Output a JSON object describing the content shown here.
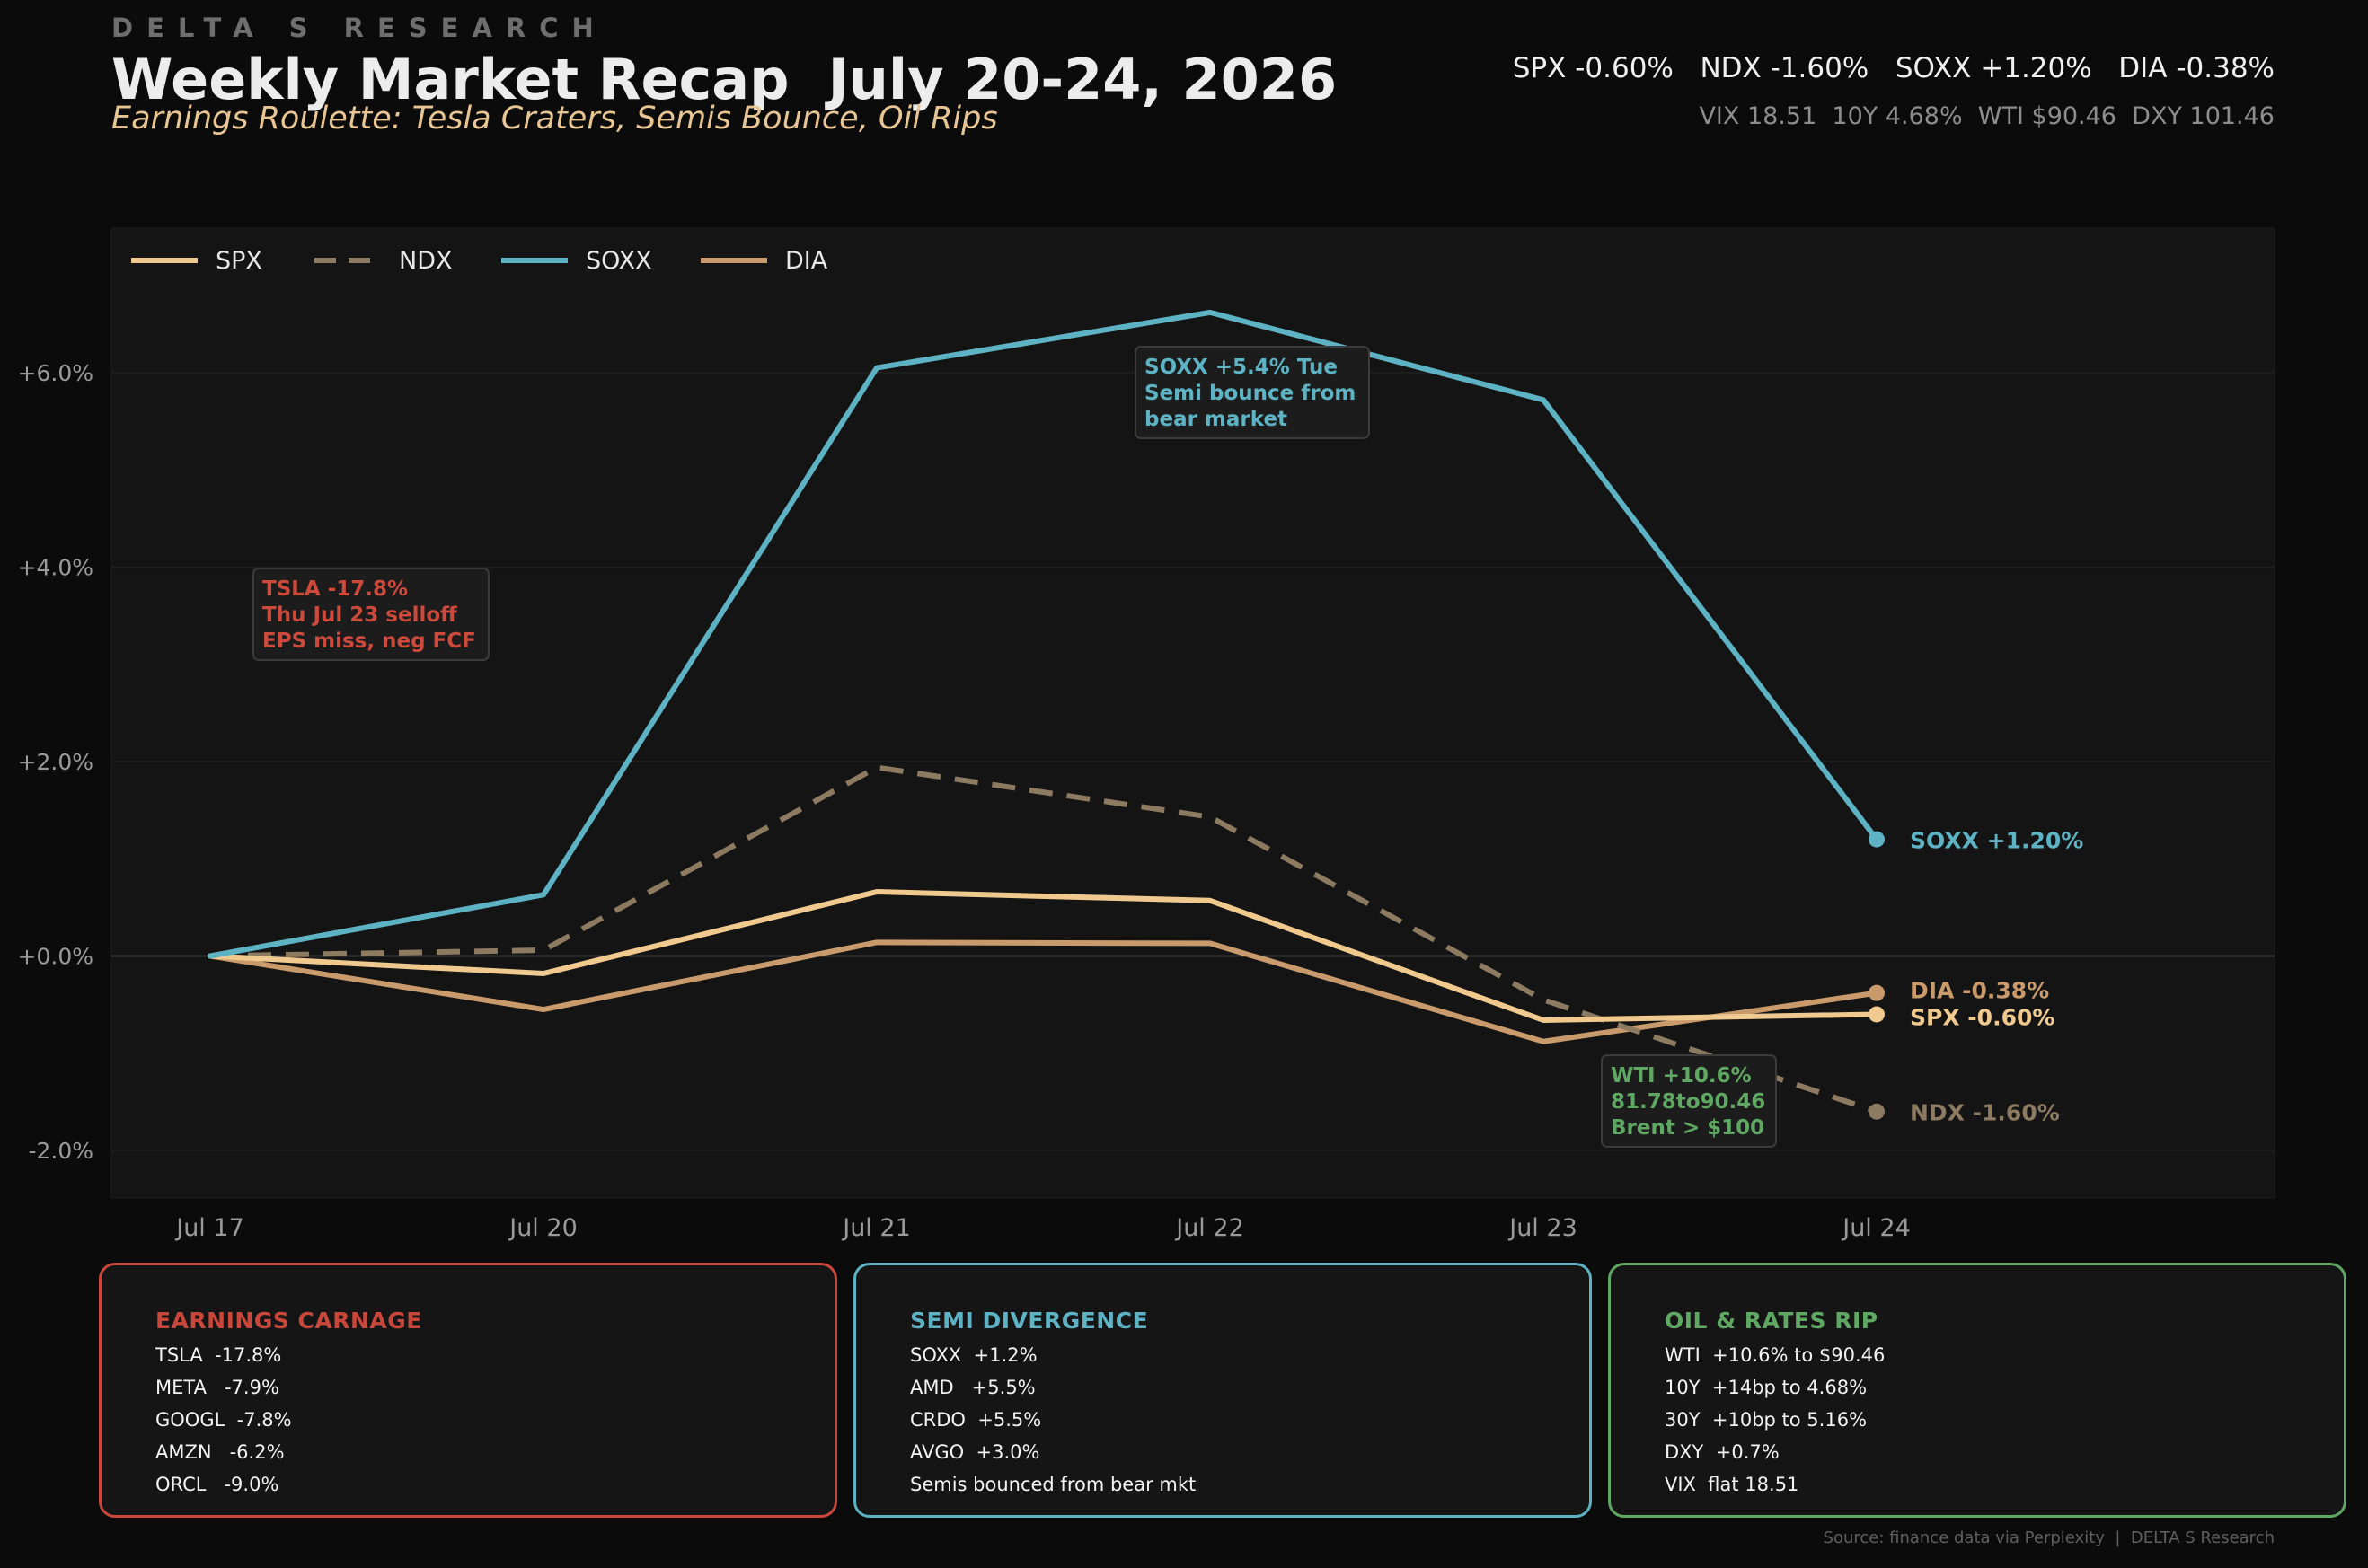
{
  "header": {
    "brand": "DELTA S RESEARCH",
    "title": "Weekly Market Recap  July 20-24, 2026",
    "subtitle": "Earnings Roulette: Tesla Craters, Semis Bounce, Oil Rips",
    "index_summary": "SPX -0.60%   NDX -1.60%   SOXX +1.20%   DIA -0.38%",
    "macro_summary": "VIX 18.51  10Y 4.68%  WTI $90.46  DXY 101.46"
  },
  "chart_data": {
    "type": "line",
    "title": "",
    "xlabel": "",
    "ylabel": "",
    "categories": [
      "Jul 17",
      "Jul 20",
      "Jul 21",
      "Jul 22",
      "Jul 23",
      "Jul 24"
    ],
    "ylim": [
      -2.5,
      7.5
    ],
    "yticks": [
      -2,
      0,
      2,
      4,
      6
    ],
    "ytick_labels": [
      "-2.0%",
      "+0.0%",
      "+2.0%",
      "+4.0%",
      "+6.0%"
    ],
    "grid": true,
    "legend_position": "top-left",
    "series": [
      {
        "name": "SPX",
        "color": "#f0c98e",
        "dashed": false,
        "values": [
          0.0,
          -0.18,
          0.66,
          0.57,
          -0.66,
          -0.6
        ],
        "end_label": "SPX  -0.60%"
      },
      {
        "name": "NDX",
        "color": "#8c7a61",
        "dashed": true,
        "values": [
          0.0,
          0.06,
          1.94,
          1.43,
          -0.45,
          -1.6
        ],
        "end_label": "NDX  -1.60%"
      },
      {
        "name": "SOXX",
        "color": "#5db3c4",
        "dashed": false,
        "values": [
          0.0,
          0.63,
          6.05,
          6.62,
          5.72,
          1.2
        ],
        "end_label": "SOXX  +1.20%"
      },
      {
        "name": "DIA",
        "color": "#c99a6b",
        "dashed": false,
        "values": [
          0.0,
          -0.55,
          0.14,
          0.13,
          -0.88,
          -0.38
        ],
        "end_label": "DIA  -0.38%"
      }
    ],
    "annotations": [
      {
        "lines": [
          "TSLA -17.8%",
          "Thu Jul 23 selloff",
          "EPS miss, neg FCF"
        ],
        "color": "#cc4a3c"
      },
      {
        "lines": [
          "SOXX +5.4% Tue",
          "Semi bounce from",
          "bear market"
        ],
        "color": "#5db3c4"
      },
      {
        "lines": [
          "WTI +10.6%",
          "81.78to90.46",
          "Brent > $100"
        ],
        "color": "#5fa863"
      }
    ]
  },
  "panels": [
    {
      "title": "EARNINGS CARNAGE",
      "color": "#c8473a",
      "lines": [
        "TSLA  -17.8%",
        "META   -7.9%",
        "GOOGL  -7.8%",
        "AMZN   -6.2%",
        "ORCL   -9.0%"
      ]
    },
    {
      "title": "SEMI DIVERGENCE",
      "color": "#5db3c4",
      "lines": [
        "SOXX  +1.2%",
        "AMD   +5.5%",
        "CRDO  +5.5%",
        "AVGO  +3.0%",
        "Semis bounced from bear mkt"
      ]
    },
    {
      "title": "OIL & RATES RIP",
      "color": "#5fa863",
      "lines": [
        "WTI  +10.6% to $90.46",
        "10Y  +14bp to 4.68%",
        "30Y  +10bp to 5.16%",
        "DXY  +0.7%",
        "VIX  flat 18.51"
      ]
    }
  ],
  "footer": "Source: finance data via Perplexity  |  DELTA S Research"
}
